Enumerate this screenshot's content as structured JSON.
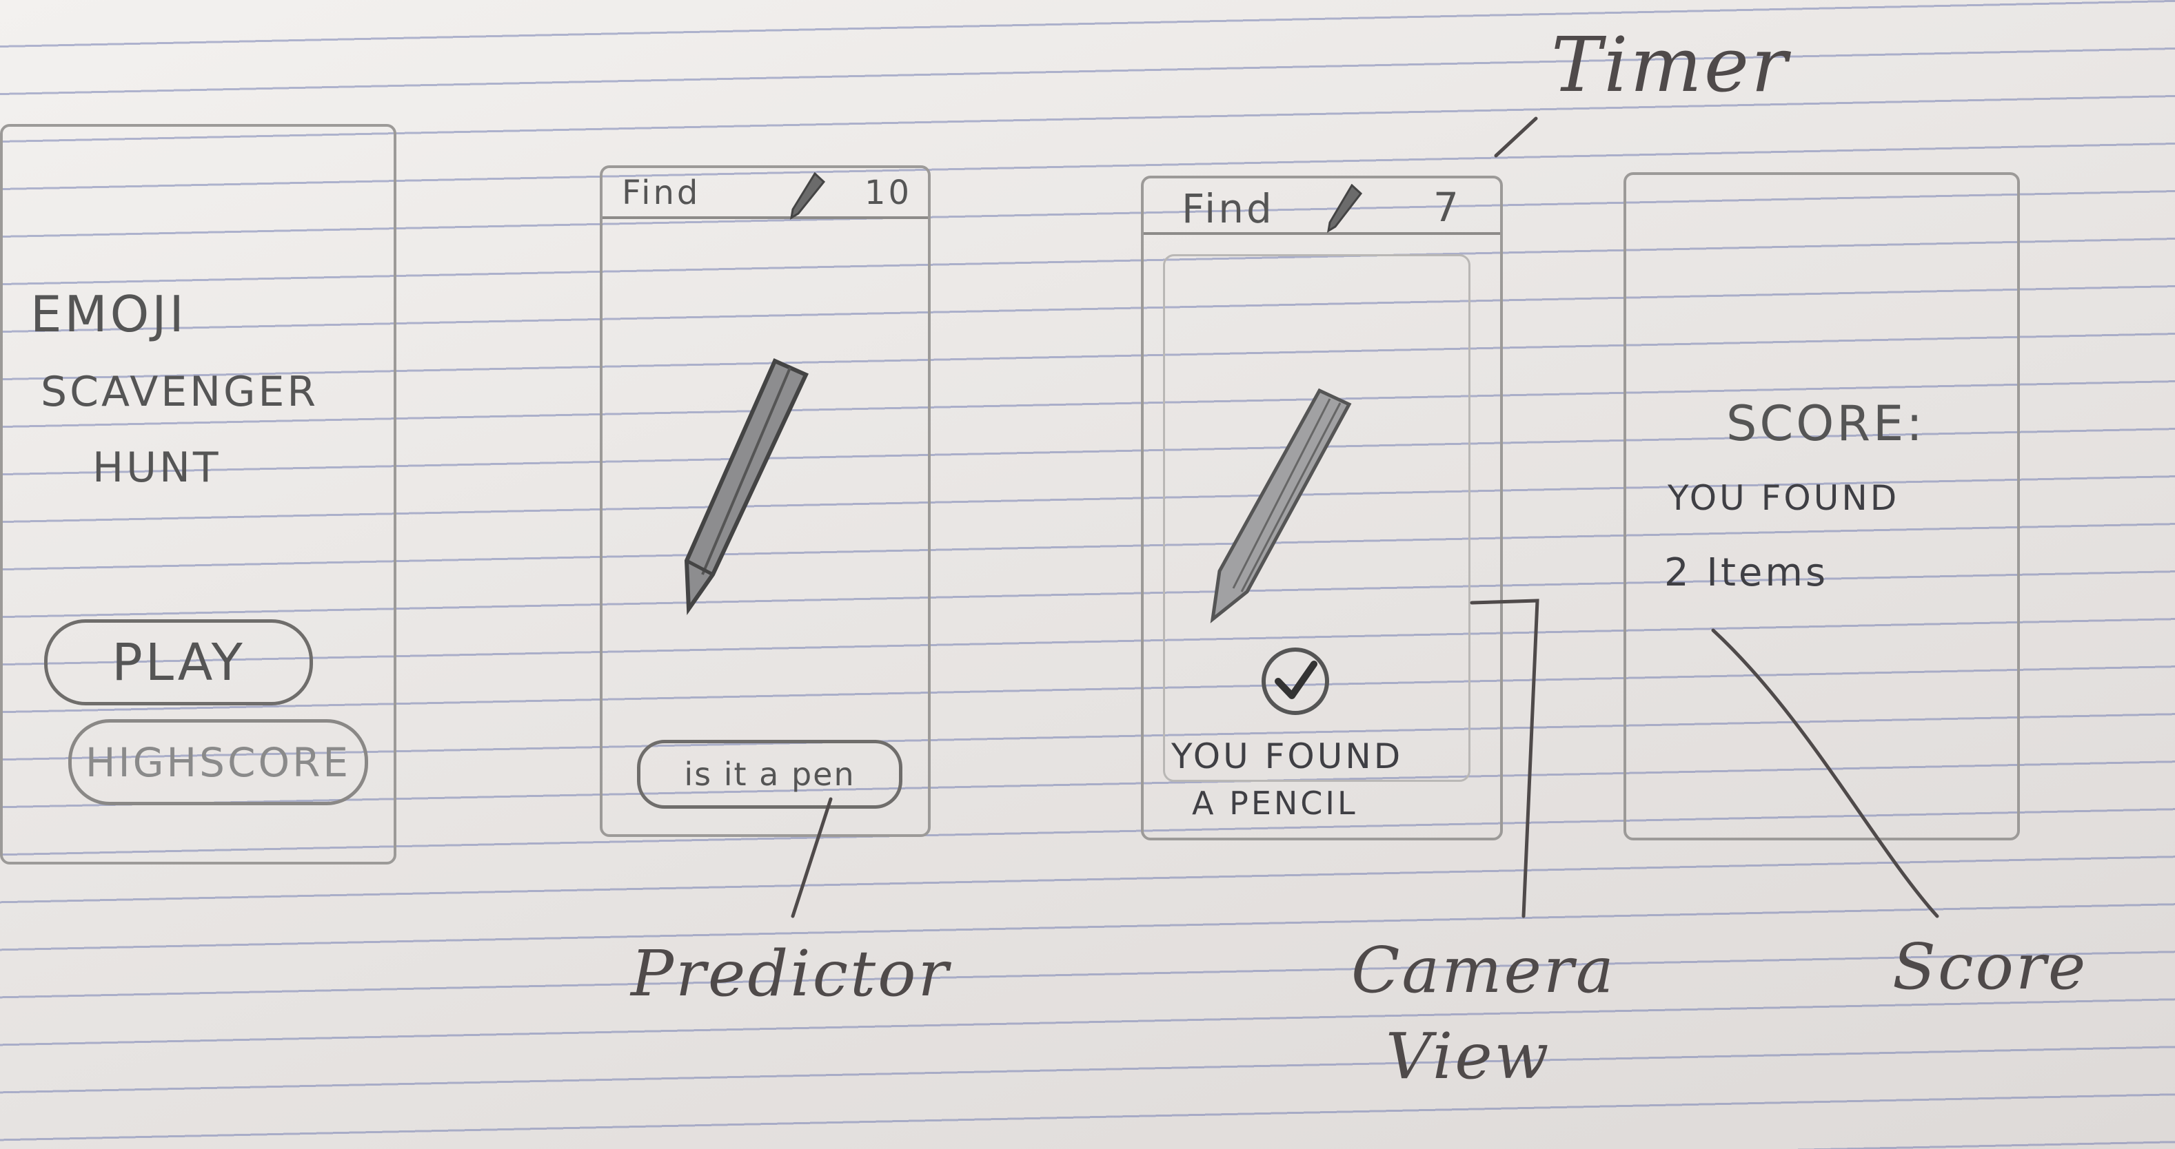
{
  "screens": {
    "home": {
      "title_lines": [
        "EMOJI",
        "SCAVENGER",
        "HUNT"
      ],
      "play_label": "PLAY",
      "highscore_label": "HIGHSCORE"
    },
    "predictor_screen": {
      "find_label": "Find",
      "target_icon": "pencil-icon",
      "timer_value": "10",
      "prediction_text": "is it a pen"
    },
    "camera_screen": {
      "find_label": "Find",
      "target_icon": "pencil-icon",
      "timer_value": "7",
      "found_icon": "check-circle-icon",
      "found_lines": [
        "YOU FOUND",
        "A PENCIL"
      ]
    },
    "score_screen": {
      "score_label": "SCORE:",
      "result_lines": [
        "YOU FOUND",
        "2 Items"
      ]
    }
  },
  "annotations": {
    "timer": "Timer",
    "predictor": "Predictor",
    "camera_view": [
      "Camera",
      "View"
    ],
    "score": "Score"
  }
}
